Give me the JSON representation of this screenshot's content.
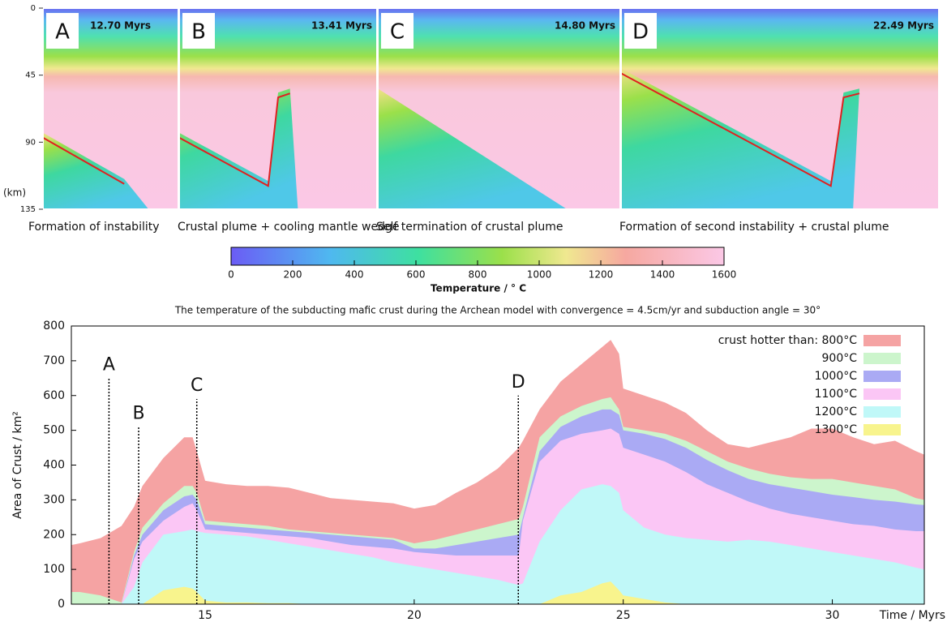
{
  "panels": {
    "axis_label": "(km)",
    "ylim": [
      0,
      135
    ],
    "yticks": [
      0,
      45,
      90,
      135
    ],
    "items": [
      {
        "label": "A",
        "time": "12.70 Myrs",
        "caption": "Formation of instability"
      },
      {
        "label": "B",
        "time": "13.41 Myrs",
        "caption": "Crustal plume + cooling mantle wedge"
      },
      {
        "label": "C",
        "time": "14.80 Myrs",
        "caption": "Self termination of crustal plume"
      },
      {
        "label": "D",
        "time": "22.49 Myrs",
        "caption": "Formation of second instability + crustal plume"
      }
    ]
  },
  "colorbar": {
    "label": "Temperature /  ° C",
    "clim": [
      0,
      1600
    ],
    "ticks": [
      0,
      200,
      400,
      600,
      800,
      1000,
      1200,
      1400,
      1600
    ]
  },
  "chart_data": {
    "type": "area",
    "title": "The temperature of the subducting mafic crust during the Archean model with convergence = 4.5cm/yr and subduction angle = 30°",
    "x_label": "Time / Myrs",
    "y_label": "Area of Crust / km²",
    "xlim": [
      11.8,
      32.2
    ],
    "xticks": [
      15,
      20,
      25,
      30
    ],
    "ylim": [
      0,
      800
    ],
    "yticks": [
      0,
      100,
      200,
      300,
      400,
      500,
      600,
      700,
      800
    ],
    "x": [
      11.8,
      12,
      12.5,
      13,
      13.3,
      13.5,
      14,
      14.5,
      14.7,
      14.8,
      15,
      15.5,
      16,
      16.5,
      17,
      17.5,
      18,
      18.5,
      19,
      19.5,
      20,
      20.5,
      21,
      21.5,
      22,
      22.5,
      22.6,
      23,
      23.5,
      24,
      24.5,
      24.7,
      24.9,
      25,
      25.5,
      26,
      26.5,
      27,
      27.5,
      28,
      28.5,
      29,
      29.5,
      30,
      30.5,
      31,
      31.5,
      32,
      32.2
    ],
    "series": [
      {
        "name": "crust hotter than: 800°C",
        "color": "#f5a3a3",
        "values": [
          170,
          175,
          190,
          225,
          280,
          340,
          420,
          480,
          480,
          440,
          355,
          345,
          340,
          340,
          335,
          320,
          305,
          300,
          295,
          290,
          275,
          285,
          320,
          350,
          390,
          450,
          470,
          560,
          640,
          690,
          740,
          760,
          720,
          620,
          600,
          580,
          550,
          500,
          460,
          450,
          465,
          480,
          505,
          505,
          480,
          460,
          470,
          440,
          430
        ]
      },
      {
        "name": "900°C",
        "color": "#ccf5cc",
        "values": [
          35,
          35,
          25,
          5,
          150,
          220,
          290,
          340,
          340,
          320,
          240,
          235,
          230,
          225,
          215,
          210,
          205,
          200,
          195,
          190,
          175,
          185,
          200,
          215,
          230,
          245,
          280,
          480,
          540,
          570,
          590,
          595,
          560,
          510,
          500,
          490,
          470,
          440,
          410,
          390,
          375,
          365,
          360,
          360,
          350,
          340,
          330,
          305,
          300
        ]
      },
      {
        "name": "1000°C",
        "color": "#aaaaf4",
        "values": [
          0,
          0,
          0,
          0,
          140,
          200,
          270,
          310,
          315,
          300,
          230,
          225,
          220,
          215,
          210,
          205,
          200,
          195,
          190,
          185,
          160,
          160,
          170,
          180,
          190,
          200,
          250,
          440,
          510,
          540,
          560,
          560,
          545,
          500,
          490,
          475,
          450,
          415,
          385,
          360,
          345,
          335,
          325,
          315,
          308,
          300,
          295,
          287,
          285
        ]
      },
      {
        "name": "1100°C",
        "color": "#fbc6f5",
        "values": [
          0,
          0,
          0,
          0,
          130,
          180,
          240,
          280,
          290,
          270,
          215,
          210,
          205,
          200,
          195,
          190,
          180,
          170,
          165,
          160,
          150,
          145,
          140,
          140,
          140,
          140,
          240,
          410,
          470,
          490,
          500,
          505,
          490,
          450,
          430,
          410,
          380,
          345,
          320,
          295,
          275,
          260,
          250,
          240,
          230,
          225,
          215,
          210,
          210
        ]
      },
      {
        "name": "1200°C",
        "color": "#c0f8f8",
        "values": [
          0,
          0,
          0,
          0,
          50,
          120,
          200,
          210,
          215,
          210,
          205,
          200,
          195,
          185,
          175,
          165,
          155,
          145,
          135,
          120,
          110,
          100,
          90,
          80,
          70,
          55,
          60,
          180,
          270,
          330,
          345,
          340,
          320,
          270,
          220,
          200,
          190,
          185,
          180,
          185,
          180,
          170,
          160,
          150,
          140,
          130,
          120,
          105,
          100
        ]
      },
      {
        "name": "1300°C",
        "color": "#f8f48d",
        "values": [
          0,
          0,
          0,
          0,
          0,
          0,
          40,
          50,
          45,
          35,
          10,
          5,
          5,
          3,
          3,
          0,
          0,
          0,
          0,
          0,
          0,
          0,
          0,
          0,
          0,
          0,
          0,
          0,
          25,
          35,
          60,
          65,
          40,
          25,
          15,
          5,
          0,
          0,
          0,
          0,
          0,
          0,
          0,
          0,
          0,
          0,
          0,
          0,
          0
        ]
      }
    ],
    "markers": [
      {
        "label": "A",
        "x": 12.7,
        "y": 650
      },
      {
        "label": "B",
        "x": 13.41,
        "y": 510
      },
      {
        "label": "C",
        "x": 14.8,
        "y": 590
      },
      {
        "label": "D",
        "x": 22.49,
        "y": 600
      }
    ]
  }
}
